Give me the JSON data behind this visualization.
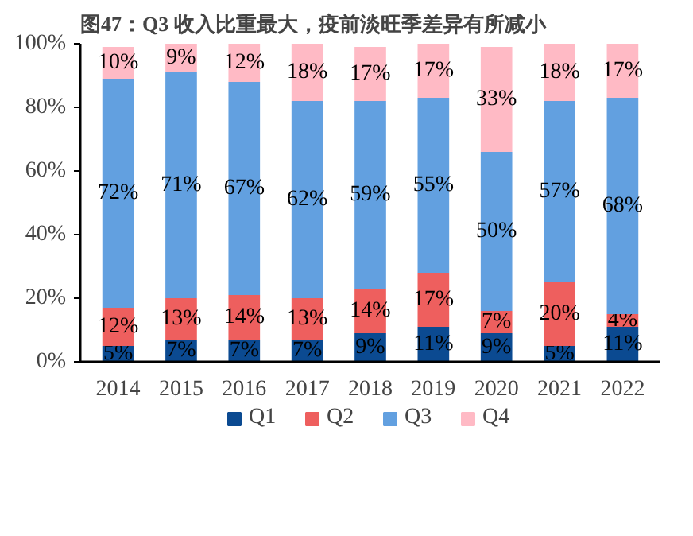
{
  "chart_data": {
    "type": "bar",
    "stacked": true,
    "title": "图47：Q3 收入比重最大，疫前淡旺季差异有所减小",
    "categories": [
      "2014",
      "2015",
      "2016",
      "2017",
      "2018",
      "2019",
      "2020",
      "2021",
      "2022"
    ],
    "series": [
      {
        "name": "Q1",
        "color": "#0b4a91",
        "values": [
          5,
          7,
          7,
          7,
          9,
          11,
          9,
          5,
          11
        ],
        "value_labels": [
          "5%",
          "7%",
          "7%",
          "7%",
          "9%",
          "11%",
          "9%",
          "5%",
          "11%"
        ]
      },
      {
        "name": "Q2",
        "color": "#ee5f5e",
        "values": [
          12,
          13,
          14,
          13,
          14,
          17,
          7,
          20,
          4
        ],
        "value_labels": [
          "12%",
          "13%",
          "14%",
          "13%",
          "14%",
          "17%",
          "7%",
          "20%",
          "4%"
        ]
      },
      {
        "name": "Q3",
        "color": "#62a0e0",
        "values": [
          72,
          71,
          67,
          62,
          59,
          55,
          50,
          57,
          68
        ],
        "value_labels": [
          "72%",
          "71%",
          "67%",
          "62%",
          "59%",
          "55%",
          "50%",
          "57%",
          "68%"
        ]
      },
      {
        "name": "Q4",
        "color": "#ffbac5",
        "values": [
          10,
          9,
          12,
          18,
          17,
          17,
          33,
          18,
          17
        ],
        "value_labels": [
          "10%",
          "9%",
          "12%",
          "18%",
          "17%",
          "17%",
          "33%",
          "18%",
          "17%"
        ]
      }
    ],
    "ylim": [
      0,
      100
    ],
    "yticks": [
      {
        "value": 0,
        "label": "0%"
      },
      {
        "value": 20,
        "label": "20%"
      },
      {
        "value": 40,
        "label": "40%"
      },
      {
        "value": 60,
        "label": "60%"
      },
      {
        "value": 80,
        "label": "80%"
      },
      {
        "value": 100,
        "label": "100%"
      }
    ],
    "grid": false,
    "legend": "bottom"
  }
}
